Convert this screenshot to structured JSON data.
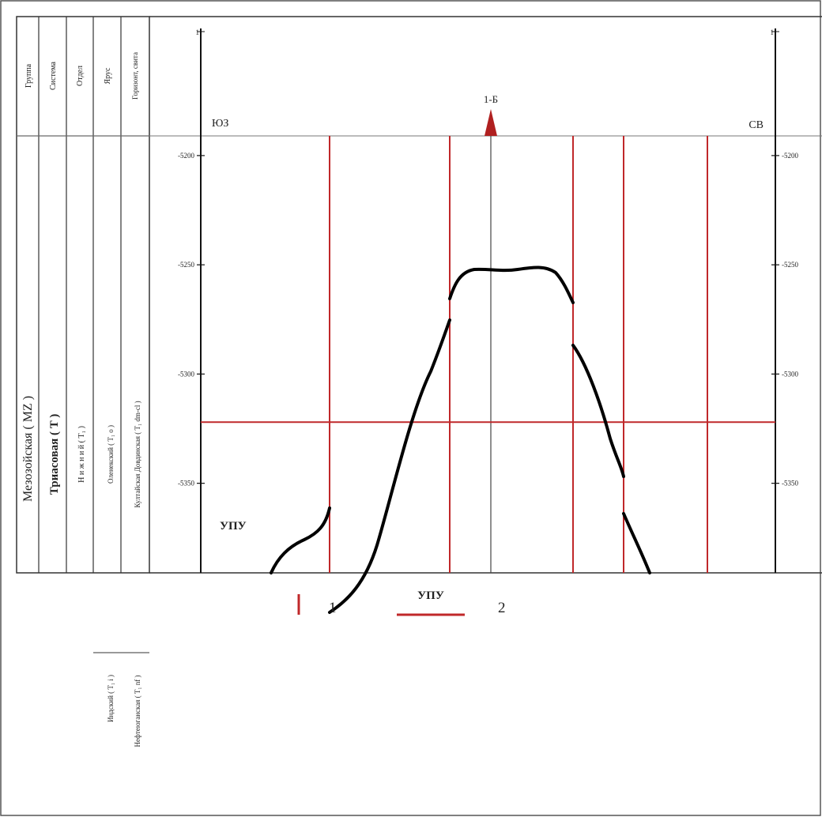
{
  "strat_headers": [
    {
      "key": "group",
      "label": "Группа"
    },
    {
      "key": "system",
      "label": "Система"
    },
    {
      "key": "series",
      "label": "Отдел"
    },
    {
      "key": "stage",
      "label": "Ярус"
    },
    {
      "key": "horizon",
      "label": "Горизонт, свита"
    }
  ],
  "strat_units": {
    "group": "Мезозойская   ( MZ )",
    "system": "Триасовая ( T )",
    "series": "Н и ж н и й ( T₁ )",
    "stage_upper": "Оленекский ( T₁ o )",
    "stage_lower": "Индский ( T₁ i )",
    "horizon_upper": "Култайская Довдинская ( T₁ dm-cl )",
    "horizon_lower": "Нефтеюганская ( T₁ nf )"
  },
  "section": {
    "left_label": "ЮЗ",
    "right_label": "СВ",
    "well_label": "1-Б",
    "well_colour": "#b02020",
    "left_axis_top_tick": "1",
    "right_axis_top_tick": "1",
    "contact_label": "УПУ",
    "contact_depth": -5322,
    "depth_ticks": [
      -5200,
      -5250,
      -5300,
      -5350
    ],
    "depth_range": [
      -5191,
      -5391
    ],
    "fault_colour": "#c0282a",
    "curve_colour": "#000000"
  },
  "legend": {
    "item1_number": "1",
    "item2_label": "УПУ",
    "item2_number": "2"
  }
}
